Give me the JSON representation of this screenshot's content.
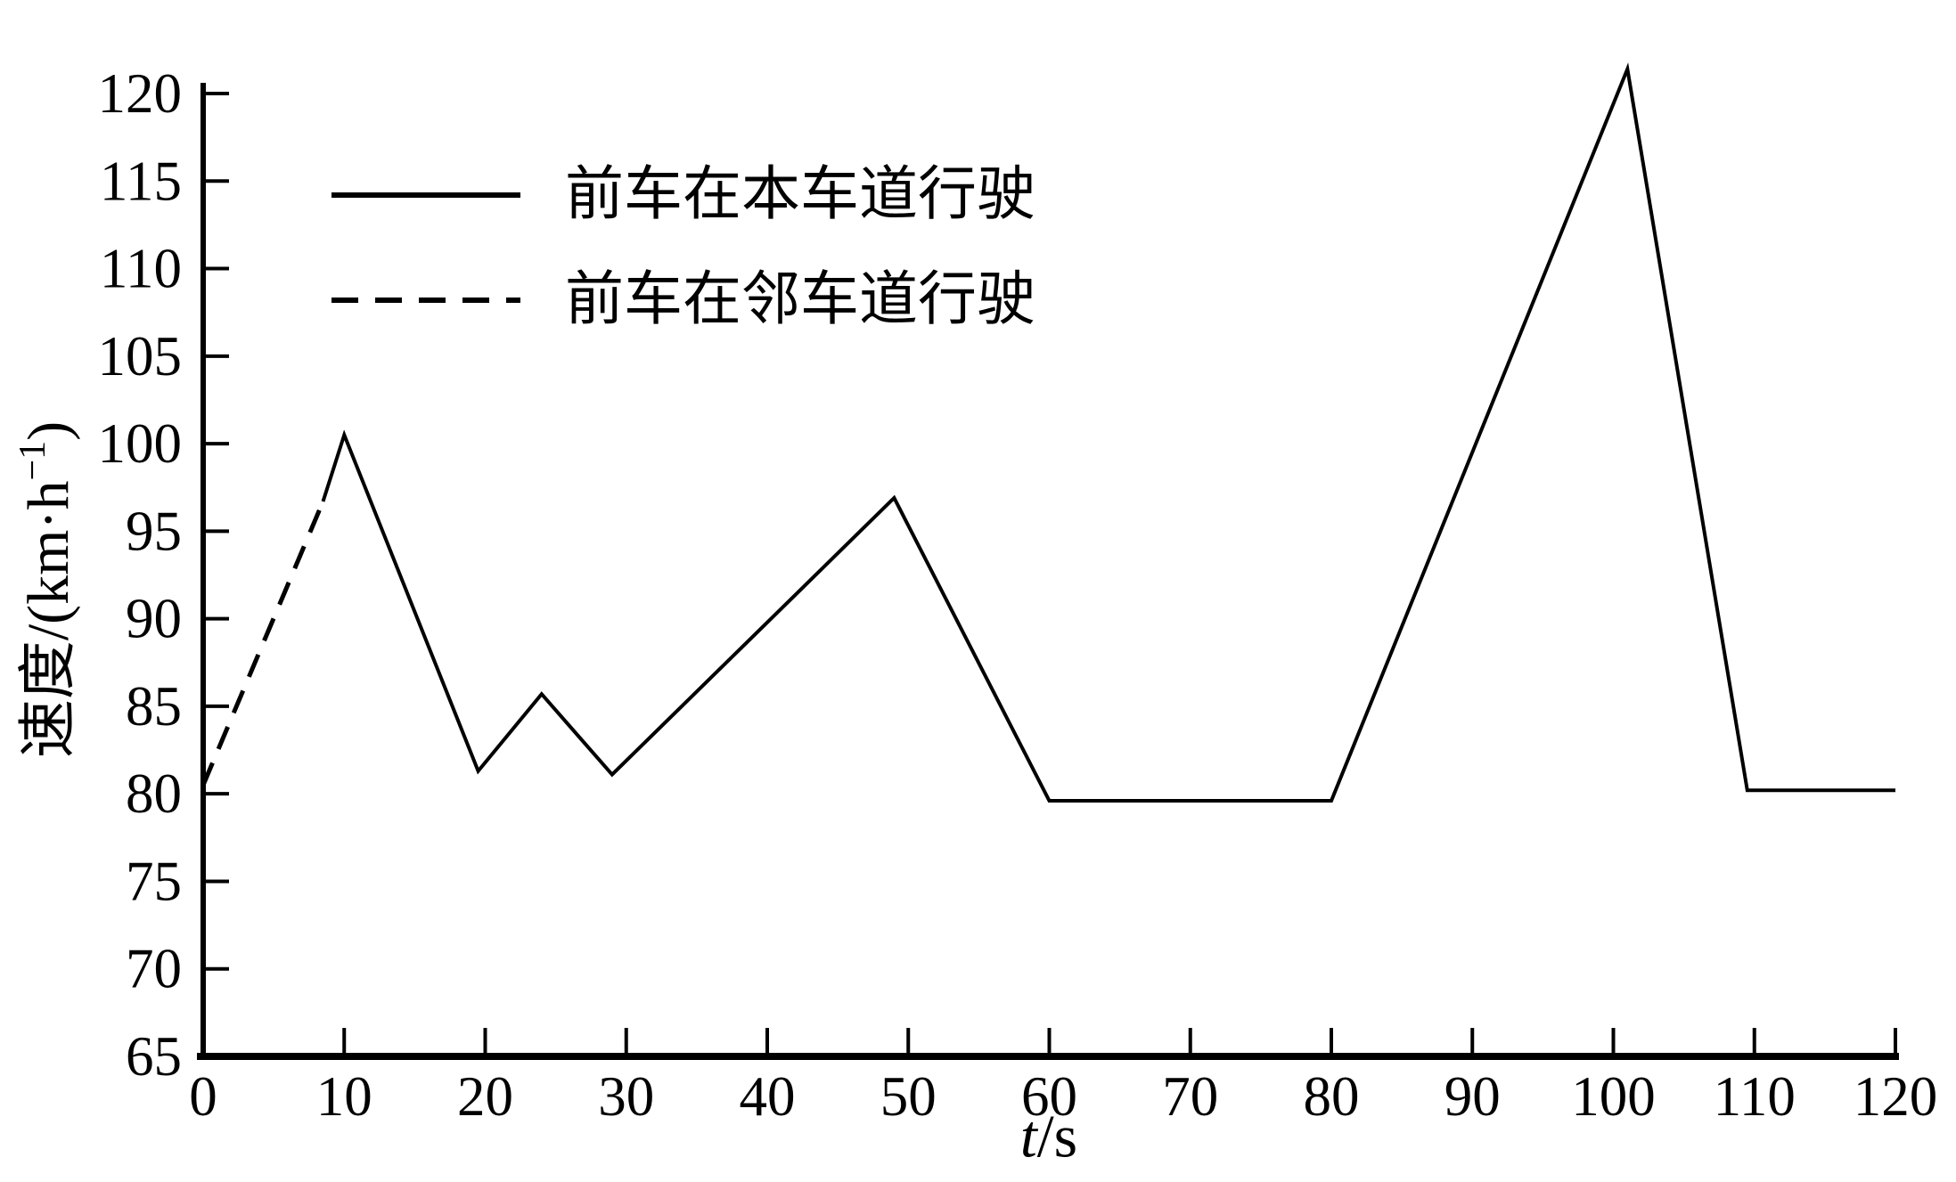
{
  "chart_data": {
    "type": "line",
    "title": "",
    "xlabel": "t/s",
    "ylabel": "速度/(km·h⁻¹)",
    "xlabel_parts": {
      "variable": "t",
      "rest": "/s"
    },
    "ylabel_parts": {
      "prefix": "速度/(km·h",
      "superscript": "−1",
      "suffix": ")"
    },
    "xlim": [
      0,
      120
    ],
    "ylim": [
      65,
      120
    ],
    "x_ticks": [
      0,
      10,
      20,
      30,
      40,
      50,
      60,
      70,
      80,
      90,
      100,
      110,
      120
    ],
    "y_ticks": [
      65,
      70,
      75,
      80,
      85,
      90,
      95,
      100,
      105,
      110,
      115,
      120
    ],
    "grid": false,
    "legend_position": "upper-left-inside",
    "line_color": "#000000",
    "series": [
      {
        "name": "前车在本车道行驶",
        "style": "solid",
        "points": [
          [
            8.5,
            96.7
          ],
          [
            10,
            100.5
          ],
          [
            19.5,
            81.3
          ],
          [
            24,
            85.7
          ],
          [
            29,
            81.1
          ],
          [
            49,
            96.9
          ],
          [
            60,
            79.6
          ],
          [
            80,
            79.6
          ],
          [
            101,
            121.4
          ],
          [
            109.5,
            80.2
          ],
          [
            120,
            80.2
          ]
        ]
      },
      {
        "name": "前车在邻车道行驶",
        "style": "dashed",
        "points": [
          [
            0,
            80.5
          ],
          [
            8.5,
            96.7
          ]
        ]
      }
    ]
  }
}
